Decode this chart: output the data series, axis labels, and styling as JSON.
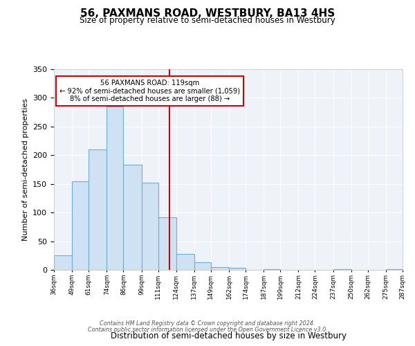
{
  "title": "56, PAXMANS ROAD, WESTBURY, BA13 4HS",
  "subtitle": "Size of property relative to semi-detached houses in Westbury",
  "xlabel": "Distribution of semi-detached houses by size in Westbury",
  "ylabel": "Number of semi-detached properties",
  "bin_edges": [
    36,
    49,
    61,
    74,
    86,
    99,
    111,
    124,
    137,
    149,
    162,
    174,
    187,
    199,
    212,
    224,
    237,
    250,
    262,
    275,
    287
  ],
  "bin_counts": [
    25,
    155,
    210,
    285,
    183,
    152,
    92,
    28,
    13,
    5,
    4,
    0,
    1,
    0,
    0,
    0,
    1,
    0,
    0,
    1
  ],
  "bar_facecolor": "#cfe2f3",
  "bar_edgecolor": "#6baed6",
  "vline_x": 119,
  "vline_color": "#cc0000",
  "annotation_title": "56 PAXMANS ROAD: 119sqm",
  "annotation_line1": "← 92% of semi-detached houses are smaller (1,059)",
  "annotation_line2": "8% of semi-detached houses are larger (88) →",
  "annotation_box_edgecolor": "#cc0000",
  "tick_labels": [
    "36sqm",
    "49sqm",
    "61sqm",
    "74sqm",
    "86sqm",
    "99sqm",
    "111sqm",
    "124sqm",
    "137sqm",
    "149sqm",
    "162sqm",
    "174sqm",
    "187sqm",
    "199sqm",
    "212sqm",
    "224sqm",
    "237sqm",
    "250sqm",
    "262sqm",
    "275sqm",
    "287sqm"
  ],
  "ylim": [
    0,
    350
  ],
  "yticks": [
    0,
    50,
    100,
    150,
    200,
    250,
    300,
    350
  ],
  "background_color": "#eef2f9",
  "footer1": "Contains HM Land Registry data © Crown copyright and database right 2024.",
  "footer2": "Contains public sector information licensed under the Open Government Licence v3.0."
}
